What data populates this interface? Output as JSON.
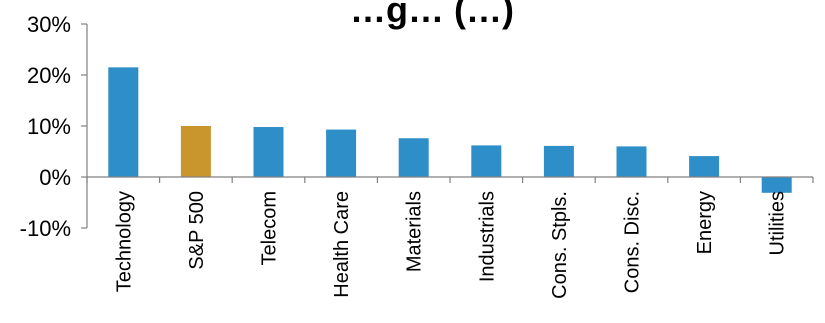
{
  "chart_data": {
    "type": "bar",
    "title": "…g… (…)",
    "categories": [
      "Technology",
      "S&P 500",
      "Telecom",
      "Health Care",
      "Materials",
      "Industrials",
      "Cons. Stpls.",
      "Cons. Disc.",
      "Energy",
      "Utilities"
    ],
    "values": [
      21.5,
      10.0,
      9.8,
      9.3,
      7.6,
      6.2,
      6.1,
      6.0,
      4.1,
      -3.1
    ],
    "value_unit": "%",
    "highlight_category": "S&P 500",
    "y_ticks": [
      "30%",
      "20%",
      "10%",
      "0%",
      "-10%"
    ],
    "ylim": [
      -10,
      30
    ],
    "grid": false,
    "legend": "none",
    "xlabel": "",
    "ylabel": ""
  },
  "colors": {
    "bar": "#2e8fc8",
    "highlight": "#c9962e",
    "axis": "#808080",
    "text": "#000000"
  }
}
